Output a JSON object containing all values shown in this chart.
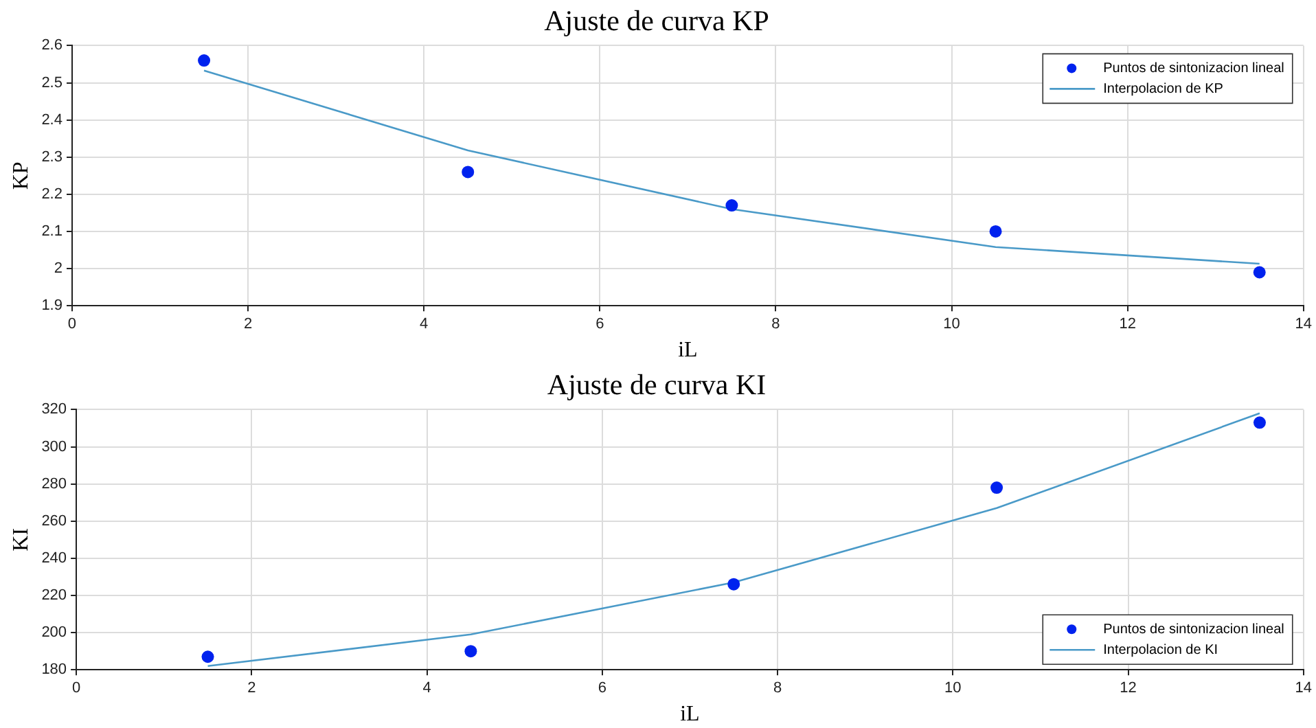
{
  "chart_data": [
    {
      "type": "scatter",
      "title": "Ajuste de curva KP",
      "xlabel": "iL",
      "ylabel": "KP",
      "xlim": [
        0,
        14
      ],
      "xticks": [
        0,
        2,
        4,
        6,
        8,
        10,
        12,
        14
      ],
      "ylim": [
        1.9,
        2.6
      ],
      "yticks": [
        1.9,
        2,
        2.1,
        2.2,
        2.3,
        2.4,
        2.5,
        2.6
      ],
      "grid": true,
      "legend": "top right",
      "series": [
        {
          "name": "Puntos de sintonizacion lineal",
          "marker": "circle",
          "color": "#0022ee",
          "x": [
            1.5,
            4.5,
            7.5,
            10.5,
            13.5
          ],
          "values": [
            2.56,
            2.26,
            2.17,
            2.1,
            1.99
          ]
        },
        {
          "name": "Interpolacion de KP",
          "type": "line",
          "marker": "none",
          "line_style": "solid",
          "color": "#4a9ac8",
          "x": [
            1.5,
            4.5,
            7.5,
            10.5,
            13.5
          ],
          "values": [
            2.533,
            2.318,
            2.16,
            2.058,
            2.013
          ]
        }
      ]
    },
    {
      "type": "scatter",
      "title": "Ajuste de curva KI",
      "xlabel": "iL",
      "ylabel": "KI",
      "xlim": [
        0,
        14
      ],
      "xticks": [
        0,
        2,
        4,
        6,
        8,
        10,
        12,
        14
      ],
      "ylim": [
        180,
        320
      ],
      "yticks": [
        180,
        200,
        220,
        240,
        260,
        280,
        300,
        320
      ],
      "grid": true,
      "legend": "bottom right",
      "series": [
        {
          "name": "Puntos de sintonizacion lineal",
          "marker": "circle",
          "color": "#0022ee",
          "x": [
            1.5,
            4.5,
            7.5,
            10.5,
            13.5
          ],
          "values": [
            187,
            190,
            226,
            278,
            313
          ]
        },
        {
          "name": "Interpolacion de KI",
          "type": "line",
          "marker": "none",
          "line_style": "solid",
          "color": "#4a9ac8",
          "x": [
            1.5,
            4.5,
            7.5,
            10.5,
            13.5
          ],
          "values": [
            182,
            199,
            227,
            267,
            318
          ]
        }
      ]
    }
  ]
}
